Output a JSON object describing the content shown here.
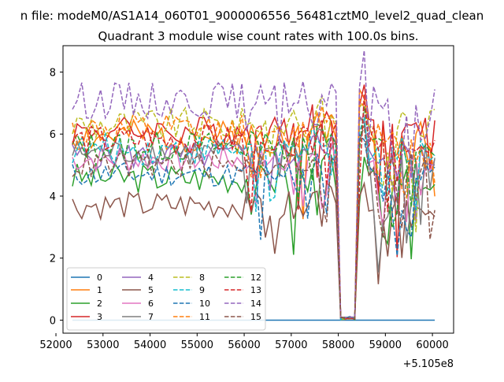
{
  "chart_data": {
    "type": "line",
    "suptitle": "n file: modeM0/AS1A14_060T01_9000006556_56481cztM0_level2_quad_clean",
    "title": "Quadrant 3 module wise count rates with 100.0s bins.",
    "xlabel": "",
    "ylabel": "",
    "x_offset_label": "+5.105e8",
    "xlim": [
      52150,
      60450
    ],
    "ylim": [
      -0.42,
      8.85
    ],
    "xticks": [
      52000,
      53000,
      54000,
      55000,
      56000,
      57000,
      58000,
      59000,
      60000
    ],
    "xtick_labels": [
      "52000",
      "53000",
      "54000",
      "55000",
      "56000",
      "57000",
      "58000",
      "59000",
      "60000"
    ],
    "yticks": [
      0,
      2,
      4,
      6,
      8
    ],
    "ytick_labels": [
      "0",
      "2",
      "4",
      "6",
      "8"
    ],
    "grid": false,
    "legend_placement": "lower-left",
    "legend_columns": 4,
    "x_start": 52350,
    "x_step": 100,
    "dip": {
      "start": 58050,
      "end": 58350,
      "floor": 0.02
    },
    "series": [
      {
        "name": "0",
        "color": "#1f77b4",
        "dash": "solid",
        "base": 0.0,
        "amp": 0.0,
        "seed": 1
      },
      {
        "name": "1",
        "color": "#ff7f0e",
        "dash": "solid",
        "base": 5.9,
        "amp": 0.55,
        "seed": 2
      },
      {
        "name": "2",
        "color": "#2ca02c",
        "dash": "solid",
        "base": 4.6,
        "amp": 0.5,
        "seed": 3
      },
      {
        "name": "3",
        "color": "#d62728",
        "dash": "solid",
        "base": 6.1,
        "amp": 0.5,
        "seed": 4
      },
      {
        "name": "4",
        "color": "#9467bd",
        "dash": "solid",
        "base": 5.3,
        "amp": 0.45,
        "seed": 5
      },
      {
        "name": "5",
        "color": "#8c564b",
        "dash": "solid",
        "base": 3.7,
        "amp": 0.45,
        "seed": 6
      },
      {
        "name": "6",
        "color": "#e377c2",
        "dash": "solid",
        "base": 5.2,
        "amp": 0.45,
        "seed": 7
      },
      {
        "name": "7",
        "color": "#7f7f7f",
        "dash": "solid",
        "base": 5.4,
        "amp": 0.45,
        "seed": 8
      },
      {
        "name": "8",
        "color": "#bcbd22",
        "dash": "dashed",
        "base": 6.3,
        "amp": 0.55,
        "seed": 9
      },
      {
        "name": "9",
        "color": "#17becf",
        "dash": "dashed",
        "base": 5.5,
        "amp": 0.5,
        "seed": 10
      },
      {
        "name": "10",
        "color": "#1f77b4",
        "dash": "dashed",
        "base": 4.7,
        "amp": 0.4,
        "seed": 11
      },
      {
        "name": "11",
        "color": "#ff7f0e",
        "dash": "dashed",
        "base": 6.1,
        "amp": 0.55,
        "seed": 12
      },
      {
        "name": "12",
        "color": "#2ca02c",
        "dash": "dashed",
        "base": 5.6,
        "amp": 0.5,
        "seed": 13
      },
      {
        "name": "13",
        "color": "#d62728",
        "dash": "dashed",
        "base": 5.8,
        "amp": 0.5,
        "seed": 14
      },
      {
        "name": "14",
        "color": "#9467bd",
        "dash": "dashed",
        "base": 7.1,
        "amp": 0.6,
        "seed": 15
      },
      {
        "name": "15",
        "color": "#8c564b",
        "dash": "dashed",
        "base": 5.0,
        "amp": 0.45,
        "seed": 16
      }
    ]
  }
}
